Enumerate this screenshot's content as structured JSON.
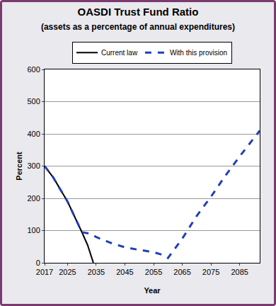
{
  "chart_data": {
    "type": "line",
    "title": "OASDI Trust Fund Ratio",
    "subtitle": "(assets as a percentage of annual expenditures)",
    "x_label": "Year",
    "y_label": "Percent",
    "series": [
      {
        "name": "Current law",
        "color": "#000000",
        "line_style": "solid",
        "x": [
          2017,
          2020,
          2025,
          2028,
          2030,
          2032,
          2034
        ],
        "values": [
          300,
          265,
          190,
          135,
          95,
          55,
          0
        ]
      },
      {
        "name": "With this provision",
        "color": "#1f3fbf",
        "line_style": "dash",
        "x": [
          2017,
          2020,
          2025,
          2028,
          2030,
          2033,
          2035,
          2040,
          2045,
          2050,
          2055,
          2058,
          2060,
          2065,
          2070,
          2075,
          2080,
          2085,
          2092
        ],
        "values": [
          300,
          265,
          190,
          135,
          95,
          90,
          80,
          62,
          48,
          40,
          33,
          25,
          15,
          75,
          145,
          205,
          270,
          330,
          410
        ]
      }
    ],
    "xlim": [
      2017,
      2092
    ],
    "xticks": [
      2017,
      2025,
      2035,
      2045,
      2055,
      2065,
      2075,
      2085
    ],
    "ylim": [
      0,
      600
    ],
    "yticks": [
      0,
      100,
      200,
      300,
      400,
      500,
      600
    ],
    "grid": true,
    "legend": "top"
  }
}
